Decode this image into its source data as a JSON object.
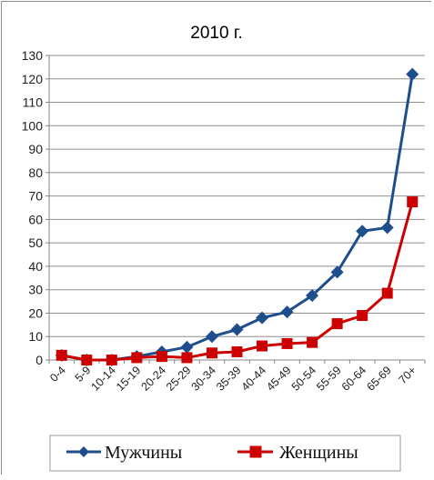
{
  "chart_data": {
    "type": "line",
    "title": "2010 г.",
    "xlabel": "",
    "ylabel": "",
    "ylim": [
      0,
      130
    ],
    "yticks": [
      0,
      10,
      20,
      30,
      40,
      50,
      60,
      70,
      80,
      90,
      100,
      110,
      120,
      130
    ],
    "grid": true,
    "legend_position": "bottom",
    "categories": [
      "0-4",
      "5-9",
      "10-14",
      "15-19",
      "20-24",
      "25-29",
      "30-34",
      "35-39",
      "40-44",
      "45-49",
      "50-54",
      "55-59",
      "60-64",
      "65-69",
      "70+"
    ],
    "series": [
      {
        "name": "Мужчины",
        "color": "#1f4e8c",
        "marker": "diamond",
        "values": [
          2,
          0,
          0,
          1.5,
          3.5,
          5.5,
          10,
          13,
          18,
          20.5,
          27.5,
          37.5,
          55,
          56.5,
          122
        ]
      },
      {
        "name": "Женщины",
        "color": "#cc0000",
        "marker": "square",
        "values": [
          2,
          0,
          0,
          1,
          1.5,
          1,
          3,
          3.5,
          6,
          7,
          7.5,
          15.5,
          19,
          28.5,
          67.5
        ]
      }
    ]
  }
}
